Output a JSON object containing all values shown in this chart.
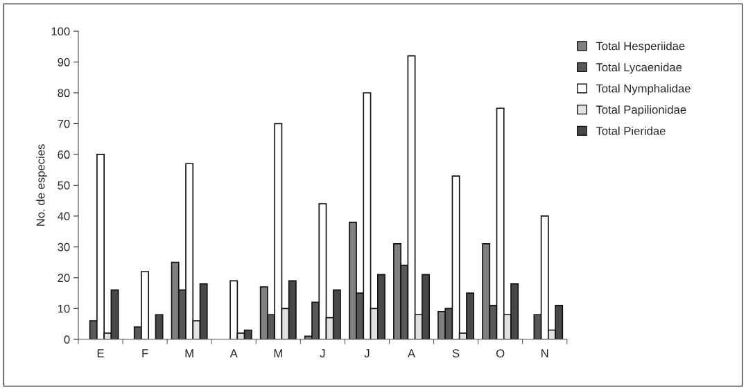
{
  "chart_data": {
    "type": "bar",
    "ylabel": "No. de especies",
    "categories": [
      "E",
      "F",
      "M",
      "A",
      "M",
      "J",
      "J",
      "A",
      "S",
      "O",
      "N"
    ],
    "series": [
      {
        "name": "Total Hesperiidae",
        "color": "#808080",
        "values": [
          null,
          null,
          25,
          null,
          17,
          1,
          38,
          31,
          9,
          31,
          null
        ]
      },
      {
        "name": "Total Lycaenidae",
        "color": "#585858",
        "values": [
          6,
          4,
          16,
          null,
          8,
          12,
          15,
          24,
          10,
          11,
          8
        ]
      },
      {
        "name": "Total Nymphalidae",
        "color": "#ffffff",
        "values": [
          60,
          22,
          57,
          19,
          70,
          44,
          80,
          92,
          53,
          75,
          40
        ]
      },
      {
        "name": "Total Papilionidae",
        "color": "#e2e2e2",
        "values": [
          2,
          null,
          6,
          2,
          10,
          7,
          10,
          8,
          2,
          8,
          3
        ]
      },
      {
        "name": "Total Pieridae",
        "color": "#484848",
        "values": [
          16,
          8,
          18,
          3,
          19,
          16,
          21,
          21,
          15,
          18,
          11
        ]
      }
    ],
    "ylim": [
      0,
      100
    ],
    "yticks": [
      0,
      10,
      20,
      30,
      40,
      50,
      60,
      70,
      80,
      90,
      100
    ],
    "grid": false,
    "legend": "right"
  }
}
